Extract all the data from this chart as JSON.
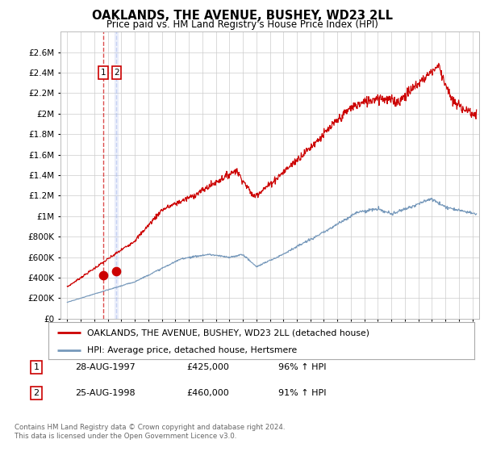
{
  "title": "OAKLANDS, THE AVENUE, BUSHEY, WD23 2LL",
  "subtitle": "Price paid vs. HM Land Registry's House Price Index (HPI)",
  "red_label": "OAKLANDS, THE AVENUE, BUSHEY, WD23 2LL (detached house)",
  "blue_label": "HPI: Average price, detached house, Hertsmere",
  "footer": "Contains HM Land Registry data © Crown copyright and database right 2024.\nThis data is licensed under the Open Government Licence v3.0.",
  "sale_annotations": [
    {
      "label": "1",
      "date": "28-AUG-1997",
      "price": "£425,000",
      "hpi": "96% ↑ HPI"
    },
    {
      "label": "2",
      "date": "25-AUG-1998",
      "price": "£460,000",
      "hpi": "91% ↑ HPI"
    }
  ],
  "sale_date1": 1997.647,
  "sale_date2": 1998.647,
  "sale_price1": 425000,
  "sale_price2": 460000,
  "ylim": [
    0,
    2800000
  ],
  "yticks": [
    0,
    200000,
    400000,
    600000,
    800000,
    1000000,
    1200000,
    1400000,
    1600000,
    1800000,
    2000000,
    2200000,
    2400000,
    2600000
  ],
  "xlim_start": 1994.5,
  "xlim_end": 2025.5,
  "red_color": "#cc0000",
  "blue_color": "#7799bb",
  "dot_color": "#cc0000",
  "bg_color": "#ffffff",
  "grid_color": "#cccccc"
}
